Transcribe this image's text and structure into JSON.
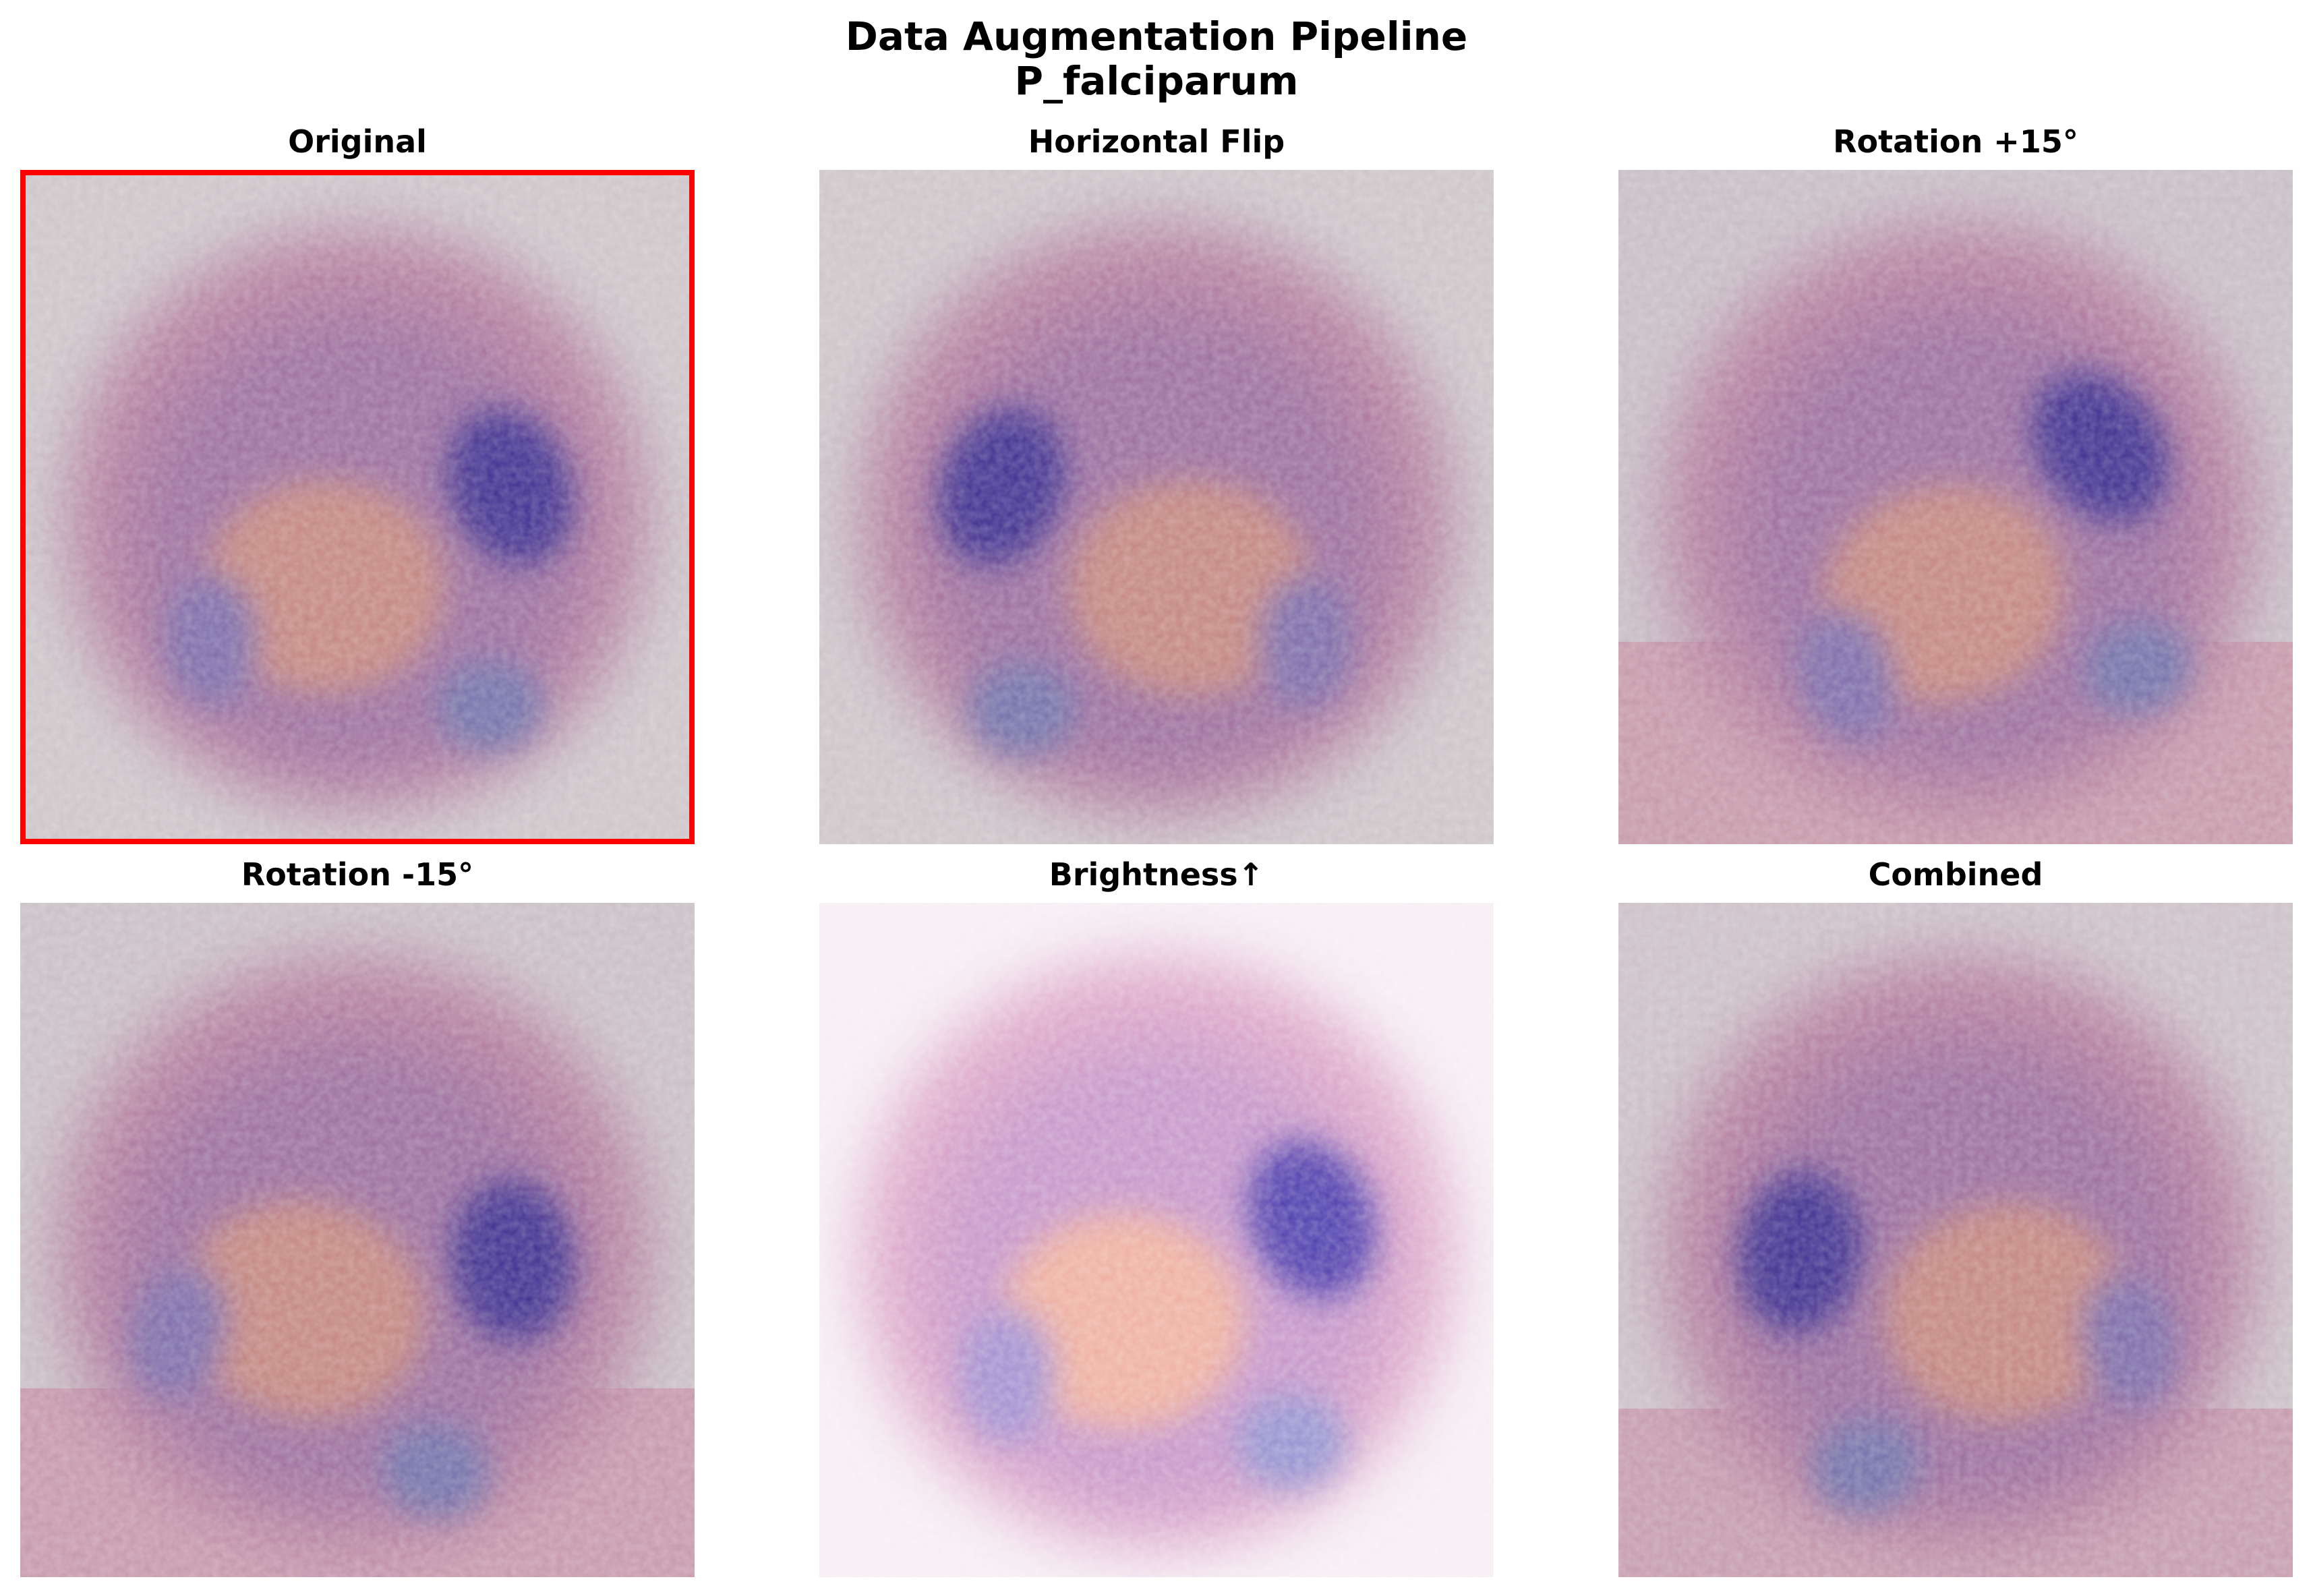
{
  "figure": {
    "title_line_1": "Data Augmentation Pipeline",
    "title_line_2": "P_falciparum",
    "highlight_color": "#ff0000"
  },
  "panels": [
    {
      "title": "Original",
      "highlighted": true,
      "variant": "original"
    },
    {
      "title": "Horizontal Flip",
      "highlighted": false,
      "variant": "flip"
    },
    {
      "title": "Rotation +15°",
      "highlighted": false,
      "variant": "rot-pos"
    },
    {
      "title": "Rotation -15°",
      "highlighted": false,
      "variant": "rot-neg"
    },
    {
      "title": "Brightness↑",
      "highlighted": false,
      "variant": "bright"
    },
    {
      "title": "Combined",
      "highlighted": false,
      "variant": "combined"
    }
  ]
}
